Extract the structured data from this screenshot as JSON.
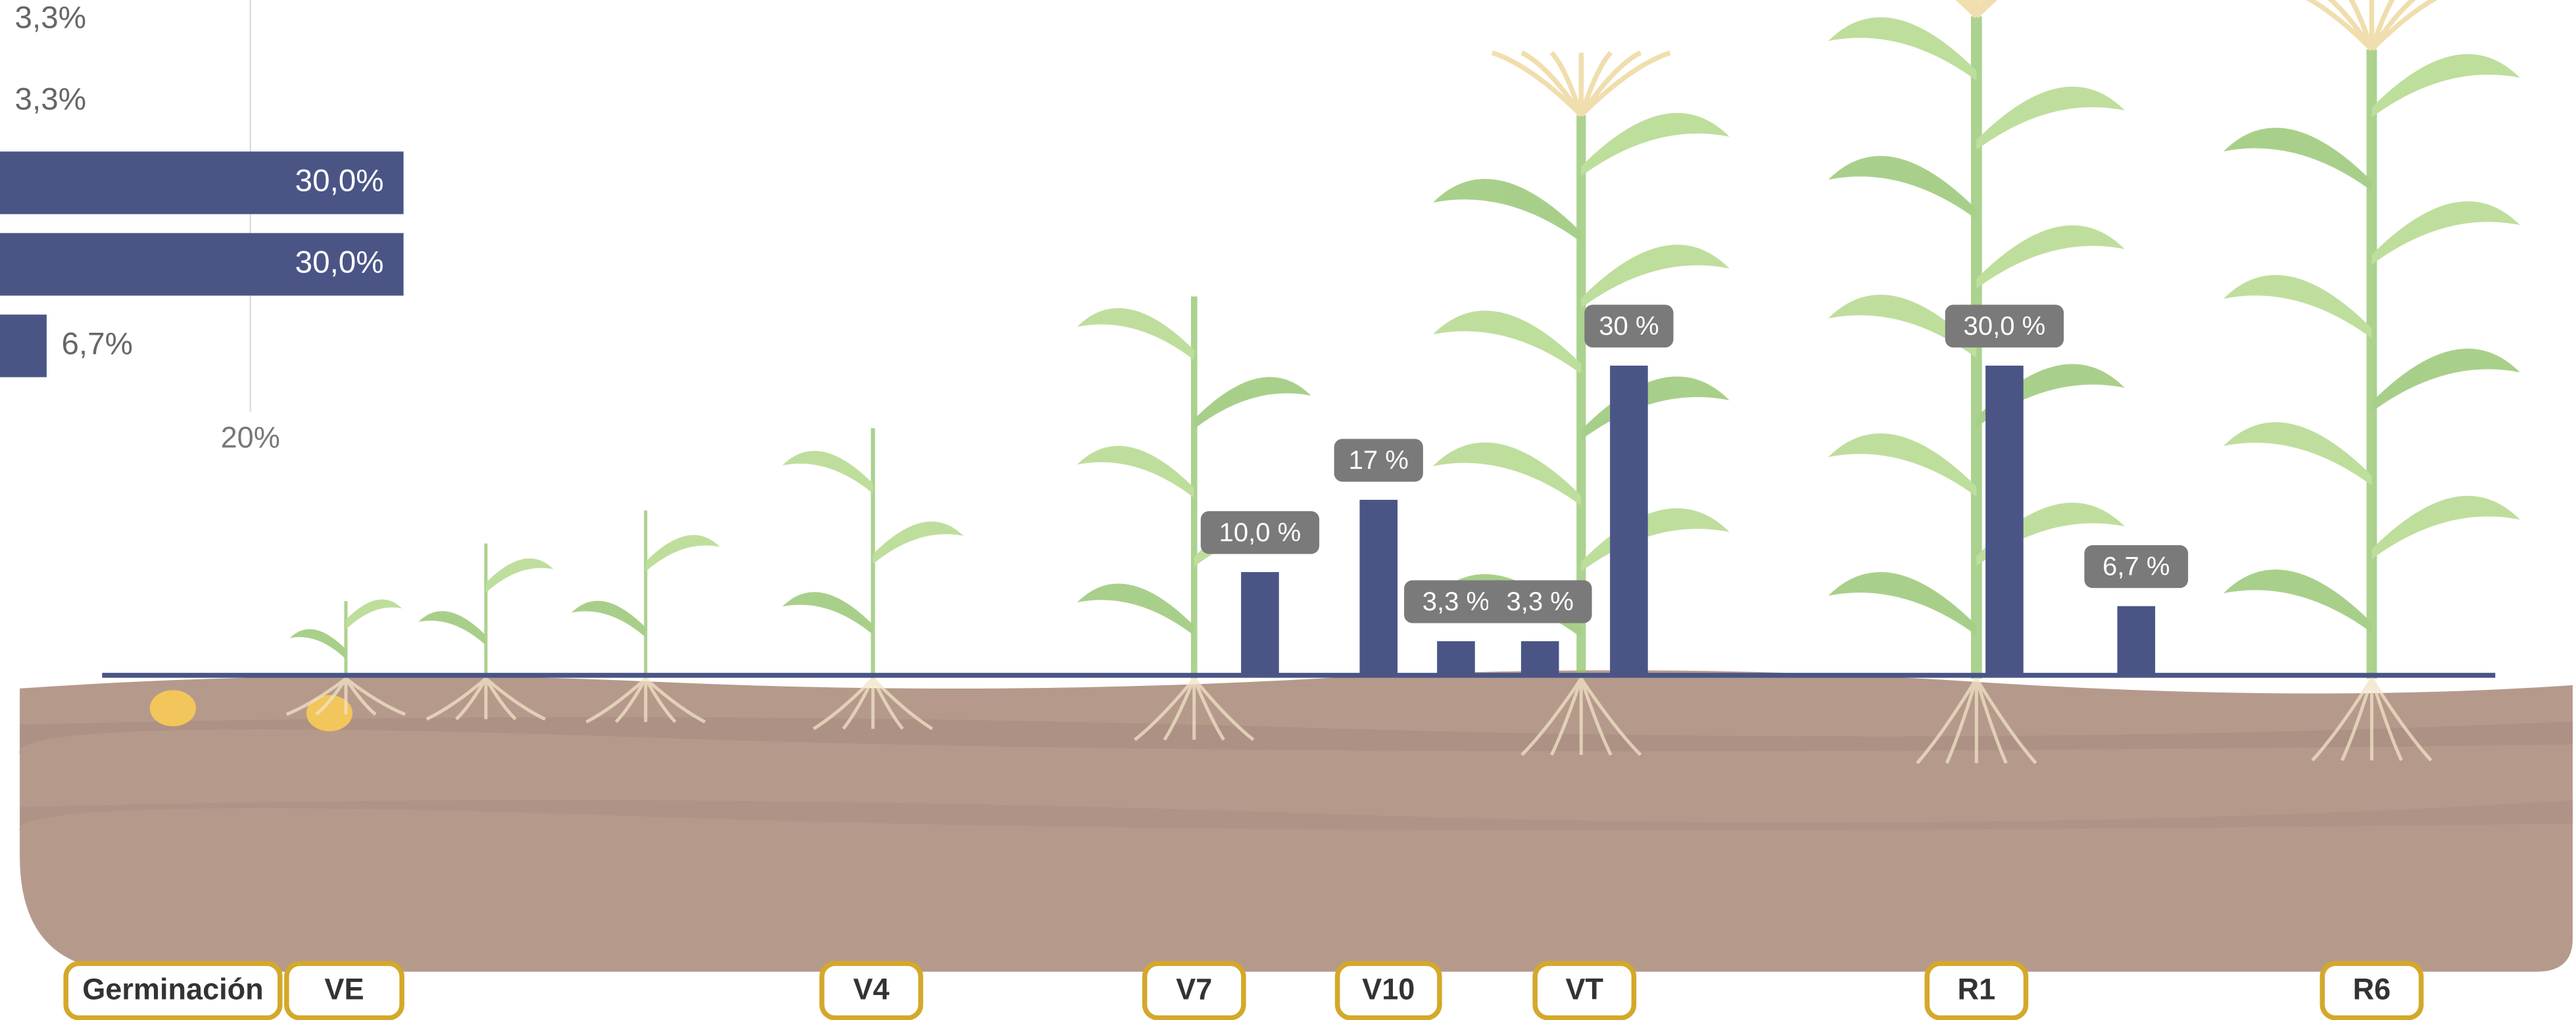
{
  "chart_data": [
    {
      "type": "hbar",
      "values": [
        3.3,
        3.3,
        30.0,
        30.0,
        6.7
      ],
      "value_labels": [
        "3,3%",
        "3,3%",
        "30,0%",
        "30,0%",
        "6,7%"
      ],
      "color": "#4a5586",
      "xlim": [
        0,
        40
      ],
      "xticks": [
        {
          "value": 20,
          "label": "20%"
        }
      ],
      "grid": true
    },
    {
      "type": "bar",
      "categories": [
        null,
        null,
        null,
        null,
        null,
        null,
        null
      ],
      "values": [
        10.0,
        17,
        3.3,
        3.3,
        30,
        30.0,
        6.7
      ],
      "value_labels": [
        "10,0 %",
        "17 %",
        "3,3 %",
        "3,3 %",
        "30 %",
        "30,0 %",
        "6,7 %"
      ],
      "color": "#4a5586",
      "ylim": [
        0,
        30
      ]
    }
  ],
  "stages": [
    "Germinación",
    "VE",
    "V4",
    "V7",
    "V10",
    "VT",
    "R1",
    "R6"
  ]
}
